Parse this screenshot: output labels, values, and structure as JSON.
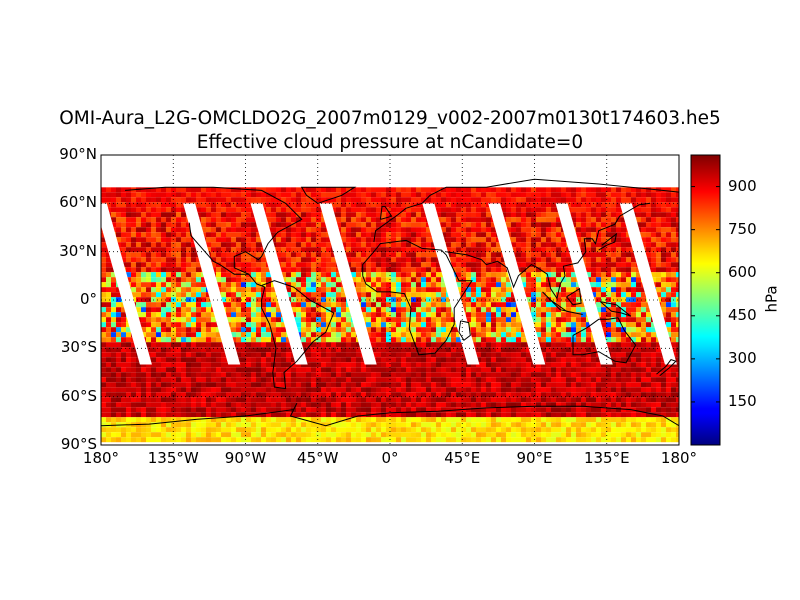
{
  "title": {
    "line1": "OMI-Aura_L2G-OMCLDO2G_2007m0129_v002-2007m0130t174603.he5",
    "line2": "Effective cloud pressure at nCandidate=0"
  },
  "axes": {
    "lat_ticks": [
      "90°N",
      "60°N",
      "30°N",
      "0°",
      "30°S",
      "60°S",
      "90°S"
    ],
    "lon_ticks": [
      "180°",
      "135°W",
      "90°W",
      "45°W",
      "0°",
      "45°E",
      "90°E",
      "135°E",
      "180°"
    ],
    "lat_values": [
      90,
      60,
      30,
      0,
      -30,
      -60,
      -90
    ],
    "lon_values": [
      -180,
      -135,
      -90,
      -45,
      0,
      45,
      90,
      135,
      180
    ]
  },
  "colorbar": {
    "label": "hPa",
    "tick_labels": [
      "900",
      "750",
      "600",
      "450",
      "300",
      "150"
    ],
    "tick_values": [
      900,
      750,
      600,
      450,
      300,
      150
    ],
    "range": [
      0,
      1010
    ],
    "colormap": "jet"
  },
  "chart_data": {
    "type": "heatmap",
    "projection": "cylindrical equidistant",
    "variable": "Effective cloud pressure at nCandidate=0",
    "units": "hPa",
    "lon_range": [
      -180,
      180
    ],
    "lat_range": [
      -90,
      90
    ],
    "data_lat_extent": [
      -88,
      70
    ],
    "gridlines": true,
    "coastlines": true,
    "swath_gaps_lon_at_equator": [
      -167,
      -112,
      -70,
      -27,
      37,
      78,
      120,
      160
    ],
    "typical_values": {
      "high_latitudes_north": 850,
      "tropics": 700,
      "southern_ocean": 950,
      "antarctica": 650
    }
  }
}
